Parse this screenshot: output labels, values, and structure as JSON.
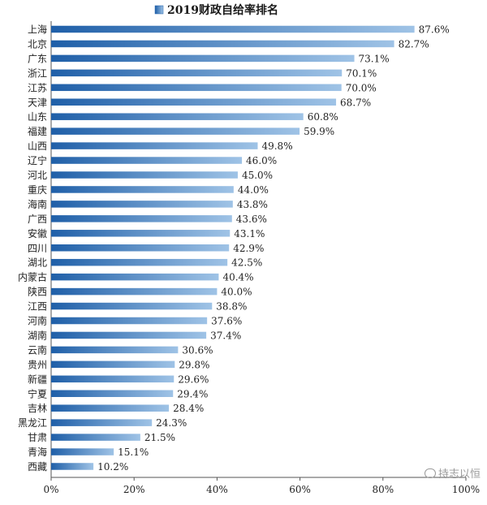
{
  "chart_data": {
    "type": "bar",
    "orientation": "horizontal",
    "title": "",
    "series": [
      {
        "name": "2019财政自给率排名",
        "values": [
          87.6,
          82.7,
          73.1,
          70.1,
          70.0,
          68.7,
          60.8,
          59.9,
          49.8,
          46.0,
          45.0,
          44.0,
          43.8,
          43.6,
          43.1,
          42.9,
          42.5,
          40.4,
          40.0,
          38.8,
          37.6,
          37.4,
          30.6,
          29.8,
          29.6,
          29.4,
          28.4,
          24.3,
          21.5,
          15.1,
          10.2
        ]
      }
    ],
    "categories": [
      "上海",
      "北京",
      "广东",
      "浙江",
      "江苏",
      "天津",
      "山东",
      "福建",
      "山西",
      "辽宁",
      "河北",
      "重庆",
      "海南",
      "广西",
      "安徽",
      "四川",
      "湖北",
      "内蒙古",
      "陕西",
      "江西",
      "河南",
      "湖南",
      "云南",
      "贵州",
      "新疆",
      "宁夏",
      "吉林",
      "黑龙江",
      "甘肃",
      "青海",
      "西藏"
    ],
    "value_labels": [
      "87.6%",
      "82.7%",
      "73.1%",
      "70.1%",
      "70.0%",
      "68.7%",
      "60.8%",
      "59.9%",
      "49.8%",
      "46.0%",
      "45.0%",
      "44.0%",
      "43.8%",
      "43.6%",
      "43.1%",
      "42.9%",
      "42.5%",
      "40.4%",
      "40.0%",
      "38.8%",
      "37.6%",
      "37.4%",
      "30.6%",
      "29.8%",
      "29.6%",
      "29.4%",
      "28.4%",
      "24.3%",
      "21.5%",
      "15.1%",
      "10.2%"
    ],
    "xlim": [
      0,
      100
    ],
    "x_ticks": [
      "0%",
      "20%",
      "40%",
      "60%",
      "80%",
      "100%"
    ],
    "xlabel": "",
    "ylabel": "",
    "grid": false,
    "legend": "top-center",
    "colors": {
      "bar_dark": "#1f5fa8",
      "bar_light": "#9fc3e6"
    }
  },
  "watermark": "持志以恒",
  "watermark_icon": "wechat-icon"
}
